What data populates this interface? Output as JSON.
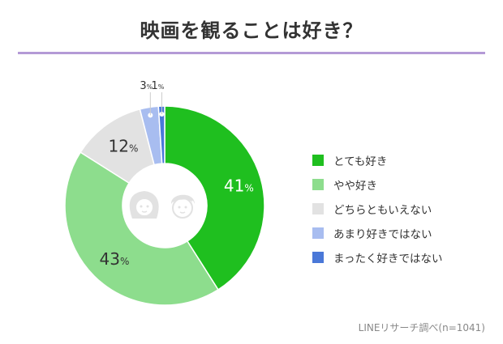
{
  "chart_data": {
    "type": "pie",
    "title": "映画を観ることは好き？",
    "unit": "%",
    "slices": [
      {
        "name": "とても好き",
        "value": 41,
        "color": "#1fbf1f"
      },
      {
        "name": "やや好き",
        "value": 43,
        "color": "#8ddd8d"
      },
      {
        "name": "どちらともいえない",
        "value": 12,
        "color": "#e2e2e2"
      },
      {
        "name": "あまり好きではない",
        "value": 3,
        "color": "#a8bdf0"
      },
      {
        "name": "まったく好きではない",
        "value": 1,
        "color": "#4a78d8"
      }
    ],
    "legend_position": "right",
    "source": "LINEリサーチ調べ(n=1041)"
  },
  "icons": {
    "center": "couple-faces-icon"
  }
}
